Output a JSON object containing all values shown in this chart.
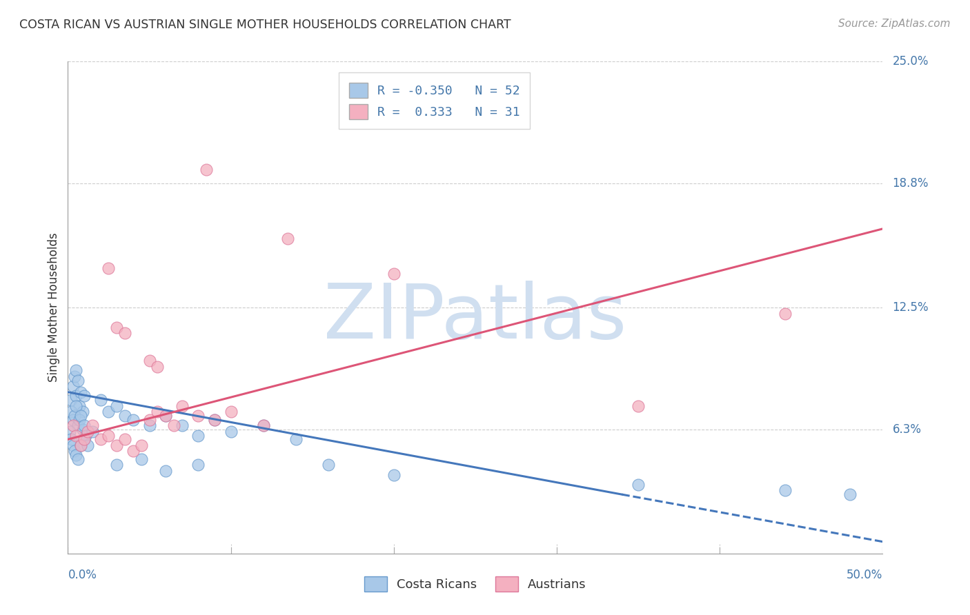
{
  "title": "COSTA RICAN VS AUSTRIAN SINGLE MOTHER HOUSEHOLDS CORRELATION CHART",
  "source": "Source: ZipAtlas.com",
  "ylabel": "Single Mother Households",
  "y_ticks": [
    0.0,
    6.3,
    12.5,
    18.8,
    25.0
  ],
  "y_tick_labels": [
    "",
    "6.3%",
    "12.5%",
    "18.8%",
    "25.0%"
  ],
  "x_ticks": [
    0.0,
    10.0,
    20.0,
    30.0,
    40.0,
    50.0
  ],
  "xlim": [
    0.0,
    50.0
  ],
  "ylim": [
    0.0,
    25.0
  ],
  "blue_color": "#a8c8e8",
  "blue_edge_color": "#6699cc",
  "pink_color": "#f4b0c0",
  "pink_edge_color": "#dd7799",
  "blue_line_color": "#4477bb",
  "pink_line_color": "#dd5577",
  "watermark": "ZIPatlas",
  "watermark_color": "#d0dff0",
  "title_color": "#333333",
  "source_color": "#999999",
  "grid_color": "#cccccc",
  "axis_label_color": "#4477aa",
  "blue_scatter": [
    [
      0.2,
      7.8
    ],
    [
      0.3,
      8.5
    ],
    [
      0.4,
      9.0
    ],
    [
      0.5,
      9.3
    ],
    [
      0.5,
      8.0
    ],
    [
      0.6,
      8.8
    ],
    [
      0.7,
      7.5
    ],
    [
      0.8,
      8.2
    ],
    [
      0.9,
      7.2
    ],
    [
      1.0,
      8.0
    ],
    [
      0.2,
      7.2
    ],
    [
      0.3,
      6.8
    ],
    [
      0.4,
      7.0
    ],
    [
      0.5,
      7.5
    ],
    [
      0.6,
      6.5
    ],
    [
      0.7,
      6.8
    ],
    [
      0.8,
      7.0
    ],
    [
      0.9,
      6.3
    ],
    [
      1.0,
      6.5
    ],
    [
      1.1,
      6.0
    ],
    [
      0.1,
      6.2
    ],
    [
      0.2,
      5.8
    ],
    [
      0.3,
      5.5
    ],
    [
      0.4,
      5.2
    ],
    [
      0.5,
      5.0
    ],
    [
      0.6,
      4.8
    ],
    [
      0.8,
      5.5
    ],
    [
      1.0,
      5.8
    ],
    [
      1.2,
      5.5
    ],
    [
      1.5,
      6.2
    ],
    [
      2.0,
      7.8
    ],
    [
      2.5,
      7.2
    ],
    [
      3.0,
      7.5
    ],
    [
      3.5,
      7.0
    ],
    [
      4.0,
      6.8
    ],
    [
      5.0,
      6.5
    ],
    [
      6.0,
      7.0
    ],
    [
      7.0,
      6.5
    ],
    [
      8.0,
      6.0
    ],
    [
      9.0,
      6.8
    ],
    [
      10.0,
      6.2
    ],
    [
      12.0,
      6.5
    ],
    [
      14.0,
      5.8
    ],
    [
      16.0,
      4.5
    ],
    [
      3.0,
      4.5
    ],
    [
      4.5,
      4.8
    ],
    [
      6.0,
      4.2
    ],
    [
      8.0,
      4.5
    ],
    [
      20.0,
      4.0
    ],
    [
      35.0,
      3.5
    ],
    [
      44.0,
      3.2
    ],
    [
      48.0,
      3.0
    ]
  ],
  "pink_scatter": [
    [
      0.3,
      6.5
    ],
    [
      0.5,
      6.0
    ],
    [
      0.8,
      5.5
    ],
    [
      1.0,
      5.8
    ],
    [
      1.2,
      6.2
    ],
    [
      1.5,
      6.5
    ],
    [
      2.0,
      5.8
    ],
    [
      2.5,
      6.0
    ],
    [
      3.0,
      5.5
    ],
    [
      3.5,
      5.8
    ],
    [
      4.0,
      5.2
    ],
    [
      4.5,
      5.5
    ],
    [
      5.0,
      6.8
    ],
    [
      5.5,
      7.2
    ],
    [
      6.0,
      7.0
    ],
    [
      6.5,
      6.5
    ],
    [
      7.0,
      7.5
    ],
    [
      8.0,
      7.0
    ],
    [
      9.0,
      6.8
    ],
    [
      10.0,
      7.2
    ],
    [
      12.0,
      6.5
    ],
    [
      3.0,
      11.5
    ],
    [
      3.5,
      11.2
    ],
    [
      5.0,
      9.8
    ],
    [
      5.5,
      9.5
    ],
    [
      2.5,
      14.5
    ],
    [
      8.5,
      19.5
    ],
    [
      13.5,
      16.0
    ],
    [
      20.0,
      14.2
    ],
    [
      44.0,
      12.2
    ],
    [
      35.0,
      7.5
    ]
  ],
  "blue_line": {
    "x0": 0.0,
    "x1": 34.0,
    "y0": 8.2,
    "y1": 3.0
  },
  "blue_line_dashed": {
    "x0": 34.0,
    "x1": 50.0,
    "y0": 3.0,
    "y1": 0.6
  },
  "pink_line": {
    "x0": 0.0,
    "x1": 50.0,
    "y0": 5.8,
    "y1": 16.5
  }
}
